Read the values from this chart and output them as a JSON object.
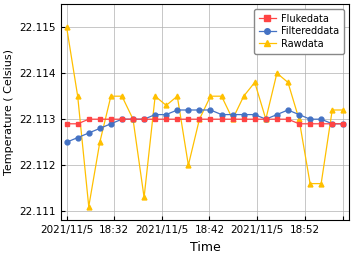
{
  "xlabel": "Time",
  "ylabel": "Temperature ( Celsius)",
  "ylim": [
    22.1108,
    22.1155
  ],
  "yticks": [
    22.111,
    22.112,
    22.113,
    22.114,
    22.115
  ],
  "fluke_x": [
    0,
    1,
    2,
    3,
    4,
    5,
    6,
    7,
    8,
    9,
    10,
    11,
    12,
    13,
    14,
    15,
    16,
    17,
    18,
    19,
    20,
    21,
    22,
    23,
    24,
    25
  ],
  "fluke_y": [
    22.1129,
    22.1129,
    22.113,
    22.113,
    22.113,
    22.113,
    22.113,
    22.113,
    22.113,
    22.113,
    22.113,
    22.113,
    22.113,
    22.113,
    22.113,
    22.113,
    22.113,
    22.113,
    22.113,
    22.113,
    22.113,
    22.1129,
    22.1129,
    22.1129,
    22.1129,
    22.1129
  ],
  "filtered_x": [
    0,
    1,
    2,
    3,
    4,
    5,
    6,
    7,
    8,
    9,
    10,
    11,
    12,
    13,
    14,
    15,
    16,
    17,
    18,
    19,
    20,
    21,
    22,
    23,
    24,
    25
  ],
  "filtered_y": [
    22.1125,
    22.1126,
    22.1127,
    22.1128,
    22.1129,
    22.113,
    22.113,
    22.113,
    22.1131,
    22.1131,
    22.1132,
    22.1132,
    22.1132,
    22.1132,
    22.1131,
    22.1131,
    22.1131,
    22.1131,
    22.113,
    22.1131,
    22.1132,
    22.1131,
    22.113,
    22.113,
    22.1129,
    22.1129
  ],
  "raw_x": [
    0,
    1,
    2,
    3,
    4,
    5,
    6,
    7,
    8,
    9,
    10,
    11,
    12,
    13,
    14,
    15,
    16,
    17,
    18,
    19,
    20,
    21,
    22,
    23,
    24,
    25
  ],
  "raw_y": [
    22.115,
    22.1135,
    22.1111,
    22.1125,
    22.1135,
    22.1135,
    22.113,
    22.1113,
    22.1135,
    22.1133,
    22.1135,
    22.112,
    22.113,
    22.1135,
    22.1135,
    22.113,
    22.1135,
    22.1138,
    22.113,
    22.114,
    22.1138,
    22.113,
    22.1116,
    22.1116,
    22.1132,
    22.1132
  ],
  "xtick_positions": [
    0,
    4.3,
    8.6,
    12.9,
    17.2,
    21.5,
    25
  ],
  "xtick_labels": [
    "2021/11/5",
    "18:32",
    "2021/11/5",
    "18:42",
    "2021/11/5",
    "18:52",
    ""
  ],
  "fluke_color": "#FF4444",
  "filtered_color": "#4472C4",
  "raw_color": "#FFC000",
  "legend_labels": [
    "Flukedata",
    "Filtereddata",
    "Rawdata"
  ],
  "grid_color": "#B0B0B0",
  "bg_color": "#FFFFFF"
}
